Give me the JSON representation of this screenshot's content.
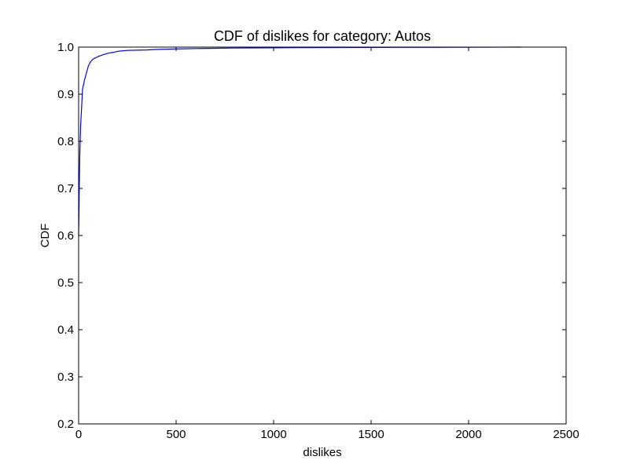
{
  "chart_data": {
    "type": "line",
    "title": "CDF of dislikes for category: Autos",
    "xlabel": "dislikes",
    "ylabel": "CDF",
    "xlim": [
      0,
      2500
    ],
    "ylim": [
      0.2,
      1.0
    ],
    "xticks": [
      0,
      500,
      1000,
      1500,
      2000,
      2500
    ],
    "xtick_labels": [
      "0",
      "500",
      "1000",
      "1500",
      "2000",
      "2500"
    ],
    "yticks": [
      0.2,
      0.3,
      0.4,
      0.5,
      0.6,
      0.7,
      0.8,
      0.9,
      1.0
    ],
    "ytick_labels": [
      "0.2",
      "0.3",
      "0.4",
      "0.5",
      "0.6",
      "0.7",
      "0.8",
      "0.9",
      "1.0"
    ],
    "grid": false,
    "series": [
      {
        "color": "#0000ff",
        "x": [
          0,
          2,
          4,
          6,
          8,
          10,
          15,
          20,
          30,
          40,
          50,
          60,
          70,
          80,
          100,
          120,
          150,
          180,
          200,
          250,
          300,
          350,
          400,
          500,
          600,
          700,
          800,
          1000,
          1200,
          1500,
          1800,
          2000,
          2270
        ],
        "y": [
          0.6,
          0.66,
          0.72,
          0.77,
          0.8,
          0.83,
          0.87,
          0.91,
          0.93,
          0.945,
          0.96,
          0.968,
          0.973,
          0.976,
          0.98,
          0.983,
          0.987,
          0.989,
          0.991,
          0.993,
          0.9935,
          0.994,
          0.995,
          0.996,
          0.997,
          0.9975,
          0.998,
          0.9985,
          0.999,
          0.9993,
          0.9996,
          0.9998,
          1.0
        ]
      }
    ]
  }
}
